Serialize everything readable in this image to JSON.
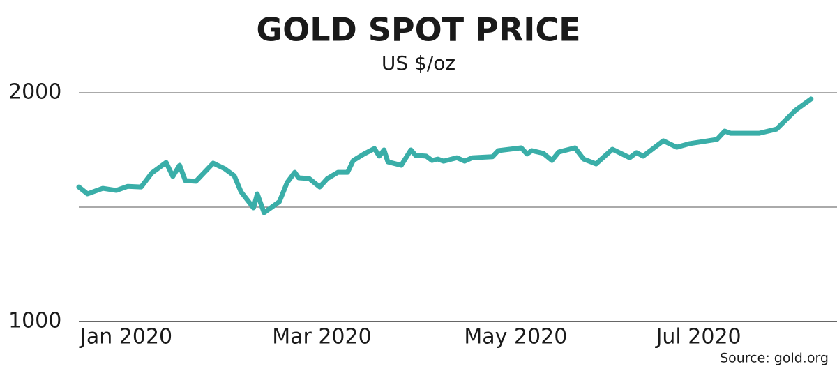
{
  "chart_data": {
    "type": "line",
    "title": "GOLD SPOT PRICE",
    "subtitle": "US $/oz",
    "source": "Source: gold.org",
    "x": [
      0,
      0.09,
      0.25,
      0.39,
      0.51,
      0.65,
      0.76,
      0.91,
      0.98,
      1.05,
      1.11,
      1.22,
      1.4,
      1.52,
      1.62,
      1.69,
      1.82,
      1.86,
      1.93,
      2.09,
      2.17,
      2.25,
      2.29,
      2.4,
      2.51,
      2.59,
      2.7,
      2.8,
      2.86,
      2.97,
      3.08,
      3.13,
      3.18,
      3.22,
      3.36,
      3.46,
      3.51,
      3.62,
      3.68,
      3.74,
      3.8,
      3.94,
      4.02,
      4.1,
      4.31,
      4.37,
      4.61,
      4.67,
      4.72,
      4.84,
      4.93,
      5.0,
      5.17,
      5.26,
      5.39,
      5.56,
      5.74,
      5.81,
      5.88,
      6.09,
      6.23,
      6.36,
      6.65,
      6.73,
      6.79,
      7.09,
      7.27,
      7.47,
      7.63
    ],
    "series": [
      {
        "name": "Gold spot price",
        "color": "#3aaea8",
        "values": [
          1588,
          1558,
          1582,
          1573,
          1591,
          1588,
          1649,
          1695,
          1634,
          1683,
          1616,
          1613,
          1692,
          1668,
          1637,
          1567,
          1497,
          1558,
          1476,
          1524,
          1607,
          1652,
          1628,
          1625,
          1588,
          1625,
          1652,
          1652,
          1704,
          1732,
          1756,
          1723,
          1750,
          1698,
          1683,
          1750,
          1726,
          1723,
          1704,
          1710,
          1701,
          1716,
          1701,
          1716,
          1720,
          1747,
          1759,
          1732,
          1747,
          1735,
          1704,
          1741,
          1759,
          1710,
          1689,
          1753,
          1716,
          1738,
          1723,
          1790,
          1762,
          1777,
          1796,
          1832,
          1823,
          1823,
          1841,
          1924,
          1973
        ]
      }
    ],
    "xlim": [
      0,
      7.9
    ],
    "xticks": [
      {
        "value": 0,
        "label": "Jan 2020"
      },
      {
        "value": 2,
        "label": "Mar 2020"
      },
      {
        "value": 4,
        "label": "May 2020"
      },
      {
        "value": 6,
        "label": "Jul 2020"
      }
    ],
    "ylim": [
      1000,
      2000
    ],
    "yticks": [
      1000,
      2000
    ],
    "ygrid": [
      1500,
      2000
    ]
  }
}
